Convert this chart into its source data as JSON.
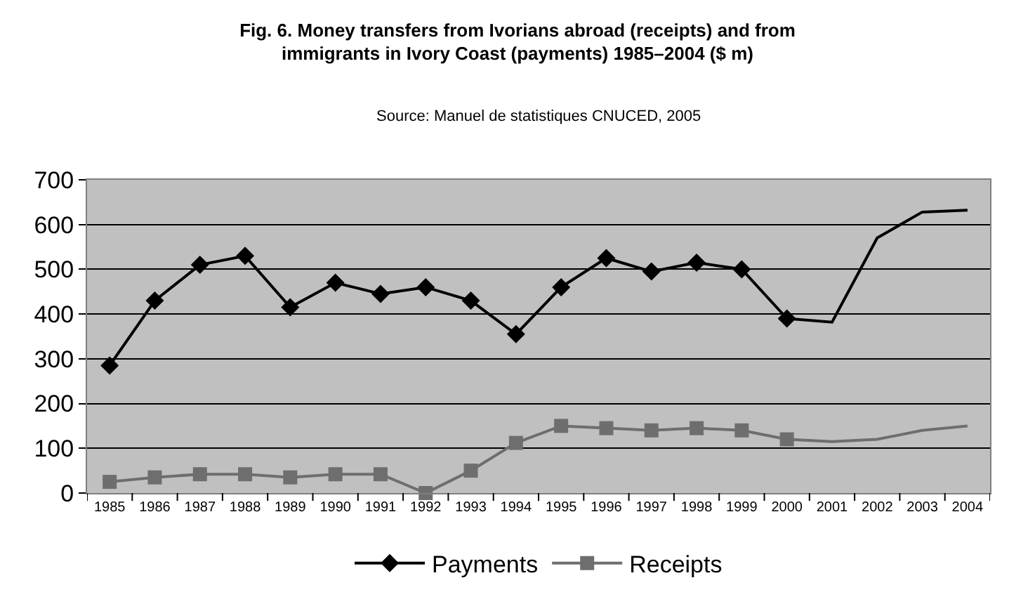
{
  "chart_data": {
    "type": "line",
    "title": "Fig. 6. Money transfers from Ivorians abroad (receipts) and from\nimmigrants in Ivory Coast (payments) 1985–2004 ($ m)",
    "annotations": [
      "Source: Manuel de statistiques CNUCED, 2005"
    ],
    "categories": [
      "1985",
      "1986",
      "1987",
      "1988",
      "1989",
      "1990",
      "1991",
      "1992",
      "1993",
      "1994",
      "1995",
      "1996",
      "1997",
      "1998",
      "1999",
      "2000",
      "2001",
      "2002",
      "2003",
      "2004"
    ],
    "series": [
      {
        "name": "Payments",
        "color": "#000000",
        "marker": "diamond",
        "values": [
          285,
          430,
          510,
          530,
          415,
          470,
          445,
          460,
          430,
          355,
          460,
          525,
          495,
          515,
          500,
          390,
          null,
          null,
          null,
          null
        ]
      },
      {
        "name": "Receipts",
        "color": "#6e6e6e",
        "marker": "square",
        "values": [
          25,
          35,
          42,
          42,
          35,
          42,
          42,
          0,
          50,
          112,
          150,
          145,
          140,
          145,
          140,
          120,
          null,
          null,
          null,
          null
        ]
      },
      {
        "color": "#000000",
        "marker": "none",
        "values": [
          null,
          null,
          null,
          null,
          null,
          null,
          null,
          null,
          null,
          null,
          null,
          null,
          null,
          null,
          null,
          390,
          382,
          570,
          628,
          632
        ]
      },
      {
        "color": "#6e6e6e",
        "marker": "none",
        "values": [
          null,
          null,
          null,
          null,
          null,
          null,
          null,
          null,
          null,
          null,
          null,
          null,
          null,
          null,
          null,
          120,
          115,
          120,
          140,
          150
        ]
      }
    ],
    "ylim": [
      0,
      700
    ],
    "yticks": [
      0,
      100,
      200,
      300,
      400,
      500,
      600,
      700
    ],
    "grid": "y",
    "legend": "bottom"
  }
}
